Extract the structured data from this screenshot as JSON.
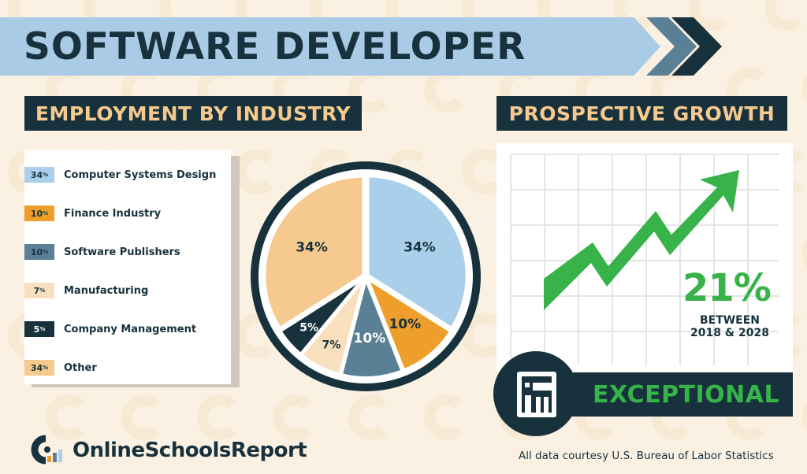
{
  "title": "SOFTWARE DEVELOPER",
  "sections": {
    "employment": "EMPLOYMENT BY INDUSTRY",
    "growth": "PROSPECTIVE GROWTH"
  },
  "legend": [
    {
      "pct": "34",
      "label": "Computer Systems Design",
      "color": "#a9cfeb"
    },
    {
      "pct": "10",
      "label": "Finance Industry",
      "color": "#ee9e2b"
    },
    {
      "pct": "10",
      "label": "Software Publishers",
      "color": "#5a8095"
    },
    {
      "pct": "7",
      "label": "Manufacturing",
      "color": "#f8dfbd"
    },
    {
      "pct": "5",
      "label": "Company Management",
      "color": "#17323d"
    },
    {
      "pct": "34",
      "label": "Other",
      "color": "#f6c98f"
    }
  ],
  "chart_data": {
    "type": "pie",
    "categories": [
      "Computer Systems Design",
      "Finance Industry",
      "Software Publishers",
      "Manufacturing",
      "Company Management",
      "Other"
    ],
    "values": [
      34,
      10,
      10,
      7,
      5,
      34
    ],
    "labels": [
      "34%",
      "10%",
      "10%",
      "7%",
      "5%",
      "34%"
    ],
    "colors": [
      "#a9cfeb",
      "#ee9e2b",
      "#5a8095",
      "#f8dfbd",
      "#17323d",
      "#f6c98f"
    ],
    "title": "EMPLOYMENT BY INDUSTRY"
  },
  "growth": {
    "value": "21%",
    "line1": "BETWEEN",
    "line2": "2018 & 2028",
    "rating": "EXCEPTIONAL"
  },
  "footer": {
    "brand": "OnlineSchoolsReport",
    "source": "All data courtesy U.S. Bureau of Labor Statistics"
  },
  "colors": {
    "navy": "#17323d",
    "light_blue": "#a9cbe6",
    "peach": "#f6c98f",
    "green": "#37b34a",
    "background": "#fbf1e3"
  }
}
